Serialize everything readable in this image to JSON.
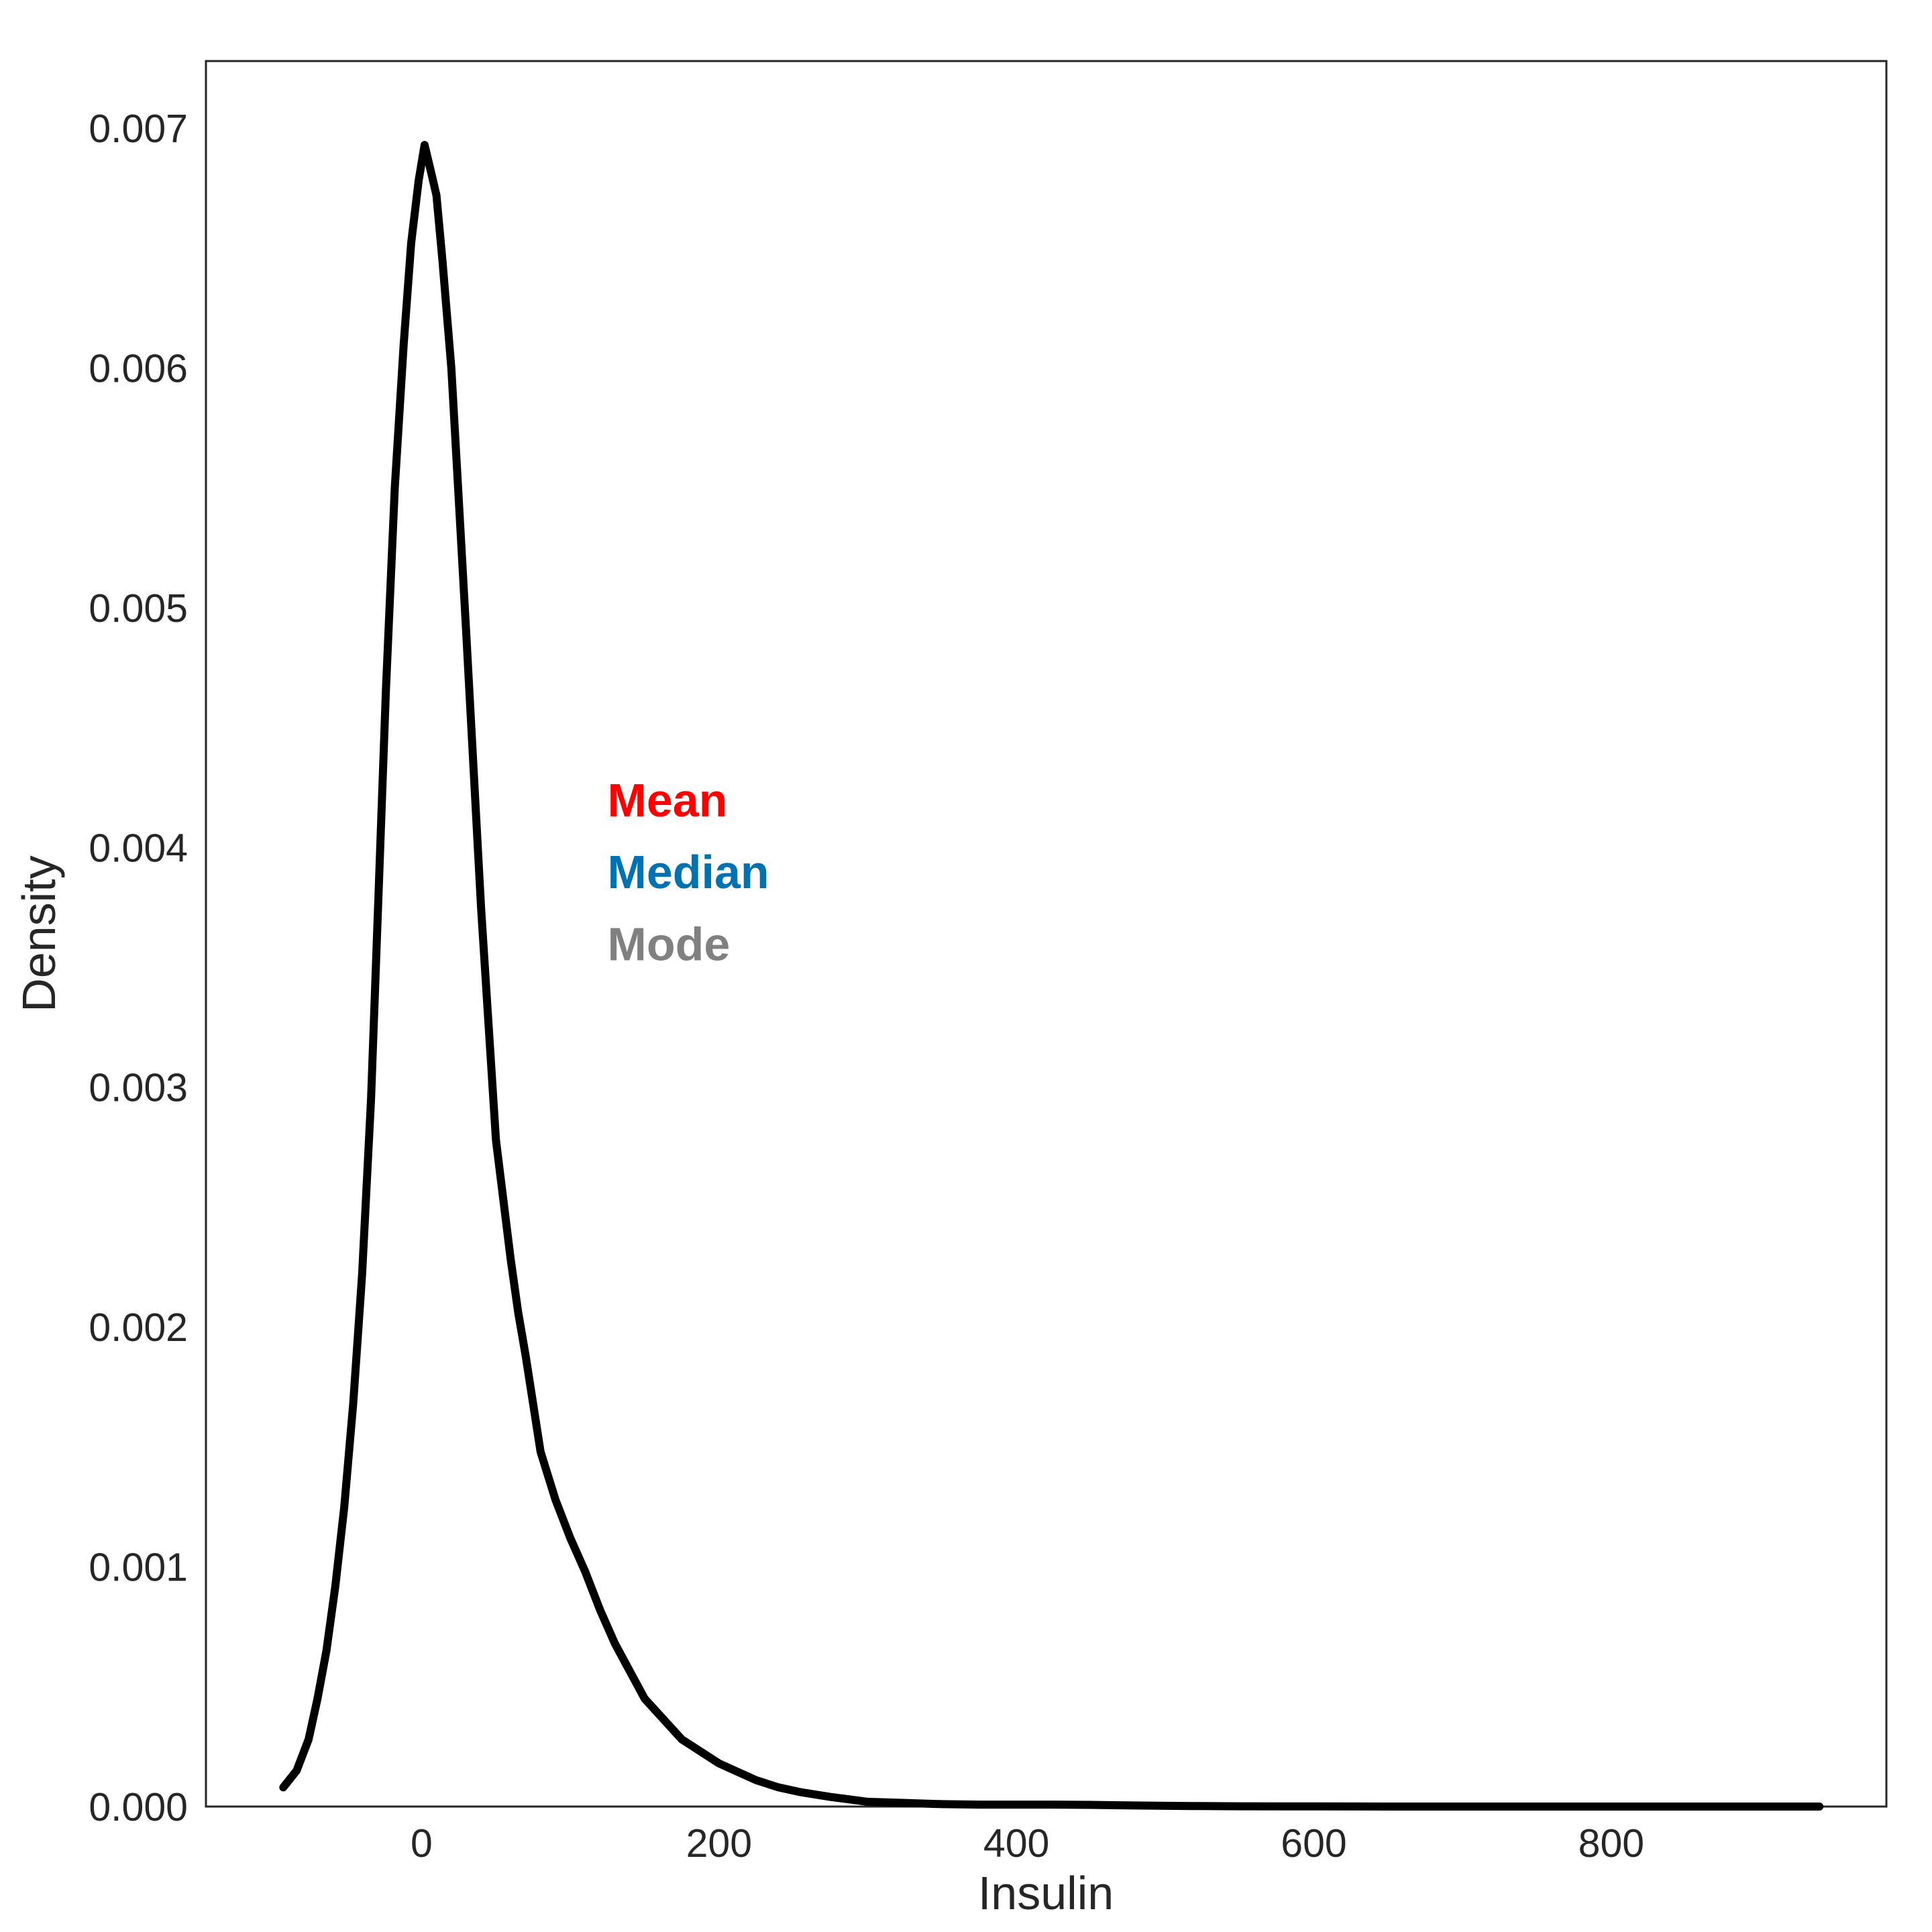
{
  "chart_data": {
    "type": "line",
    "title": "",
    "xlabel": "Insulin",
    "ylabel": "Density",
    "xlim": [
      -145,
      985
    ],
    "ylim": [
      0,
      0.00728
    ],
    "xticks": [
      0,
      200,
      400,
      600,
      800
    ],
    "xtick_labels": [
      "0",
      "200",
      "400",
      "600",
      "800"
    ],
    "yticks": [
      0.0,
      0.001,
      0.002,
      0.003,
      0.004,
      0.005,
      0.006,
      0.007
    ],
    "ytick_labels": [
      "0.000",
      "0.001",
      "0.002",
      "0.003",
      "0.004",
      "0.005",
      "0.006",
      "0.007"
    ],
    "grid": false,
    "series": [
      {
        "name": "Insulin KDE",
        "color": "#000000",
        "x": [
          -93,
          -84,
          -76,
          -70,
          -64,
          -58,
          -52,
          -46,
          -40,
          -34,
          -29,
          -24,
          -18,
          -12,
          -7,
          -2,
          2,
          7,
          10,
          14,
          20,
          25,
          30,
          40,
          50,
          60,
          65,
          70,
          75,
          80,
          90,
          100,
          110,
          120,
          130,
          150,
          175,
          200,
          225,
          240,
          255,
          275,
          300,
          325,
          350,
          375,
          400,
          425,
          450,
          475,
          500,
          525,
          550,
          600,
          650,
          700,
          750,
          800,
          850,
          900,
          940
        ],
        "y": [
          8e-05,
          0.00015,
          0.00028,
          0.00045,
          0.00065,
          0.00092,
          0.00125,
          0.00168,
          0.00222,
          0.00295,
          0.0038,
          0.00465,
          0.0055,
          0.0061,
          0.00652,
          0.00678,
          0.00693,
          0.0068,
          0.00672,
          0.00645,
          0.006,
          0.00545,
          0.0049,
          0.00375,
          0.00278,
          0.00228,
          0.00206,
          0.00188,
          0.00168,
          0.00148,
          0.00128,
          0.00112,
          0.00098,
          0.00082,
          0.00068,
          0.00045,
          0.00028,
          0.00018,
          0.00011,
          8e-05,
          6e-05,
          4e-05,
          2e-05,
          1.5e-05,
          1e-05,
          8e-06,
          8e-06,
          8e-06,
          7e-06,
          5e-06,
          3e-06,
          2e-06,
          1e-06,
          5e-07,
          0.0,
          0.0,
          0.0,
          0.0,
          0.0,
          0.0,
          0.0
        ]
      }
    ],
    "annotations": [
      {
        "text": "Mean",
        "color": "#ff0000",
        "x": 125,
        "y": 0.00413
      },
      {
        "text": "Median",
        "color": "#0072b2",
        "x": 125,
        "y": 0.00383
      },
      {
        "text": "Mode",
        "color": "#808080",
        "x": 125,
        "y": 0.00353
      }
    ]
  }
}
